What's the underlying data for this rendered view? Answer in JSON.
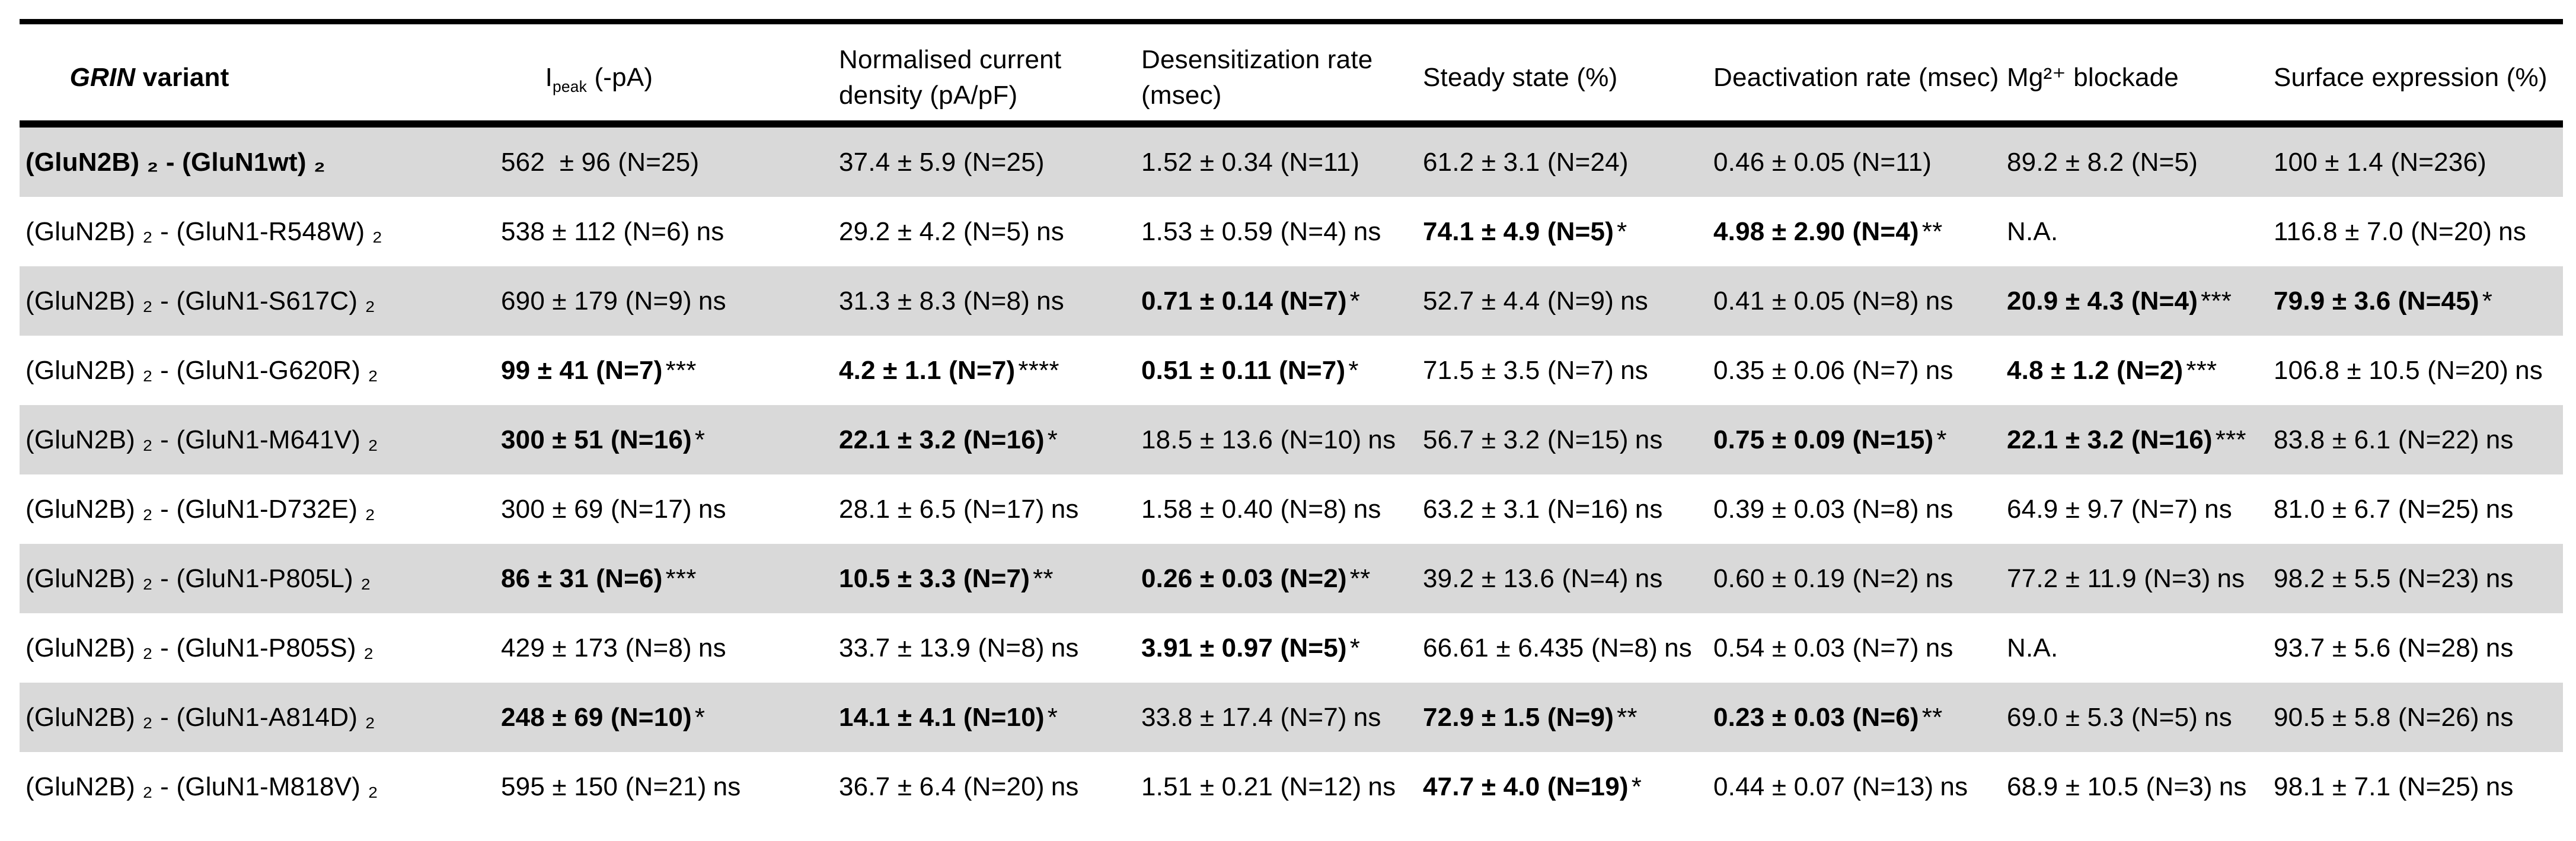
{
  "colors": {
    "background": "#ffffff",
    "shaded_row": "#d9d9d9",
    "border": "#000000",
    "text": "#000000"
  },
  "table": {
    "columns": [
      {
        "key": "variant",
        "italic": "GRIN",
        "rest": " variant"
      },
      {
        "key": "ipeak",
        "prefix": "I",
        "sub": "peak",
        "rest": " (-pA)"
      },
      {
        "key": "normalised_current_density",
        "label": "Normalised current\ndensity (pA/pF)"
      },
      {
        "key": "desensitization_rate",
        "label": "Desensitization rate\n(msec)"
      },
      {
        "key": "steady_state",
        "label": "Steady state (%)"
      },
      {
        "key": "deactivation_rate",
        "label": "Deactivation rate (msec)"
      },
      {
        "key": "mg_blockade",
        "label": "Mg²⁺ blockade"
      },
      {
        "key": "surface_expression",
        "label": "Surface expression (%)"
      }
    ],
    "rows": [
      {
        "shaded": true,
        "variant": "(GluN2B) ₂ - (GluN1wt) ₂",
        "variant_bold": true,
        "cells": [
          {
            "v": "562  ± 96 (N=25)",
            "b": false,
            "s": ""
          },
          {
            "v": "37.4 ± 5.9 (N=25)",
            "b": false,
            "s": ""
          },
          {
            "v": "1.52 ± 0.34 (N=11)",
            "b": false,
            "s": ""
          },
          {
            "v": "61.2 ± 3.1 (N=24)",
            "b": false,
            "s": ""
          },
          {
            "v": "0.46 ± 0.05 (N=11)",
            "b": false,
            "s": ""
          },
          {
            "v": "89.2 ± 8.2 (N=5)",
            "b": false,
            "s": ""
          },
          {
            "v": "100 ± 1.4 (N=236)",
            "b": false,
            "s": ""
          }
        ]
      },
      {
        "shaded": false,
        "variant": "(GluN2B) ₂ - (GluN1-R548W) ₂",
        "variant_bold": false,
        "cells": [
          {
            "v": "538 ± 112 (N=6)",
            "b": false,
            "s": "ns"
          },
          {
            "v": "29.2 ± 4.2 (N=5)",
            "b": false,
            "s": "ns"
          },
          {
            "v": "1.53 ± 0.59 (N=4)",
            "b": false,
            "s": "ns"
          },
          {
            "v": "74.1 ± 4.9 (N=5)",
            "b": true,
            "s": "*"
          },
          {
            "v": "4.98 ± 2.90 (N=4)",
            "b": true,
            "s": "**"
          },
          {
            "v": "N.A.",
            "b": false,
            "s": ""
          },
          {
            "v": "116.8 ± 7.0 (N=20)",
            "b": false,
            "s": "ns"
          }
        ]
      },
      {
        "shaded": true,
        "variant": "(GluN2B) ₂ - (GluN1-S617C) ₂",
        "variant_bold": false,
        "cells": [
          {
            "v": "690 ± 179 (N=9)",
            "b": false,
            "s": "ns"
          },
          {
            "v": "31.3 ± 8.3 (N=8)",
            "b": false,
            "s": "ns"
          },
          {
            "v": "0.71 ± 0.14 (N=7)",
            "b": true,
            "s": "*"
          },
          {
            "v": "52.7 ± 4.4 (N=9)",
            "b": false,
            "s": "ns"
          },
          {
            "v": "0.41 ± 0.05 (N=8)",
            "b": false,
            "s": "ns"
          },
          {
            "v": "20.9 ± 4.3 (N=4)",
            "b": true,
            "s": "***"
          },
          {
            "v": "79.9 ± 3.6 (N=45)",
            "b": true,
            "s": "*"
          }
        ]
      },
      {
        "shaded": false,
        "variant": "(GluN2B) ₂ - (GluN1-G620R) ₂",
        "variant_bold": false,
        "cells": [
          {
            "v": "99 ± 41 (N=7)",
            "b": true,
            "s": "***"
          },
          {
            "v": "4.2 ± 1.1 (N=7)",
            "b": true,
            "s": "****"
          },
          {
            "v": "0.51 ± 0.11 (N=7)",
            "b": true,
            "s": "*"
          },
          {
            "v": "71.5 ± 3.5 (N=7)",
            "b": false,
            "s": "ns"
          },
          {
            "v": "0.35 ± 0.06 (N=7)",
            "b": false,
            "s": "ns"
          },
          {
            "v": "4.8 ± 1.2 (N=2)",
            "b": true,
            "s": "***"
          },
          {
            "v": "106.8 ± 10.5 (N=20)",
            "b": false,
            "s": "ns"
          }
        ]
      },
      {
        "shaded": true,
        "variant": "(GluN2B) ₂ - (GluN1-M641V) ₂",
        "variant_bold": false,
        "cells": [
          {
            "v": "300 ± 51 (N=16)",
            "b": true,
            "s": "*"
          },
          {
            "v": "22.1 ± 3.2 (N=16)",
            "b": true,
            "s": "*"
          },
          {
            "v": "18.5 ± 13.6 (N=10)",
            "b": false,
            "s": "ns"
          },
          {
            "v": "56.7 ± 3.2 (N=15)",
            "b": false,
            "s": "ns"
          },
          {
            "v": "0.75 ± 0.09 (N=15)",
            "b": true,
            "s": "*"
          },
          {
            "v": "22.1 ± 3.2 (N=16)",
            "b": true,
            "s": "***"
          },
          {
            "v": "83.8 ± 6.1 (N=22)",
            "b": false,
            "s": "ns"
          }
        ]
      },
      {
        "shaded": false,
        "variant": "(GluN2B) ₂ - (GluN1-D732E) ₂",
        "variant_bold": false,
        "cells": [
          {
            "v": "300 ± 69 (N=17)",
            "b": false,
            "s": "ns"
          },
          {
            "v": "28.1 ± 6.5 (N=17)",
            "b": false,
            "s": "ns"
          },
          {
            "v": "1.58 ± 0.40 (N=8)",
            "b": false,
            "s": "ns"
          },
          {
            "v": "63.2 ± 3.1 (N=16)",
            "b": false,
            "s": "ns"
          },
          {
            "v": "0.39 ± 0.03 (N=8)",
            "b": false,
            "s": "ns"
          },
          {
            "v": "64.9 ± 9.7 (N=7)",
            "b": false,
            "s": "ns"
          },
          {
            "v": "81.0 ± 6.7 (N=25)",
            "b": false,
            "s": "ns"
          }
        ]
      },
      {
        "shaded": true,
        "variant": "(GluN2B) ₂ - (GluN1-P805L) ₂",
        "variant_bold": false,
        "cells": [
          {
            "v": "86 ± 31 (N=6)",
            "b": true,
            "s": "***"
          },
          {
            "v": "10.5 ± 3.3 (N=7)",
            "b": true,
            "s": "**"
          },
          {
            "v": "0.26 ± 0.03 (N=2)",
            "b": true,
            "s": "**"
          },
          {
            "v": "39.2 ± 13.6 (N=4)",
            "b": false,
            "s": "ns"
          },
          {
            "v": "0.60 ± 0.19 (N=2)",
            "b": false,
            "s": "ns"
          },
          {
            "v": "77.2 ± 11.9 (N=3)",
            "b": false,
            "s": "ns"
          },
          {
            "v": "98.2 ± 5.5 (N=23)",
            "b": false,
            "s": "ns"
          }
        ]
      },
      {
        "shaded": false,
        "variant": "(GluN2B) ₂ - (GluN1-P805S) ₂",
        "variant_bold": false,
        "cells": [
          {
            "v": "429 ± 173 (N=8)",
            "b": false,
            "s": "ns"
          },
          {
            "v": "33.7 ± 13.9 (N=8)",
            "b": false,
            "s": "ns"
          },
          {
            "v": "3.91 ± 0.97 (N=5)",
            "b": true,
            "s": "*"
          },
          {
            "v": "66.61 ± 6.435 (N=8)",
            "b": false,
            "s": "ns"
          },
          {
            "v": "0.54 ± 0.03 (N=7)",
            "b": false,
            "s": "ns"
          },
          {
            "v": "N.A.",
            "b": false,
            "s": ""
          },
          {
            "v": "93.7 ± 5.6 (N=28)",
            "b": false,
            "s": "ns"
          }
        ]
      },
      {
        "shaded": true,
        "variant": "(GluN2B) ₂ - (GluN1-A814D) ₂",
        "variant_bold": false,
        "cells": [
          {
            "v": "248 ± 69 (N=10)",
            "b": true,
            "s": "*"
          },
          {
            "v": "14.1 ± 4.1 (N=10)",
            "b": true,
            "s": "*"
          },
          {
            "v": "33.8 ± 17.4 (N=7)",
            "b": false,
            "s": "ns"
          },
          {
            "v": "72.9 ± 1.5 (N=9)",
            "b": true,
            "s": "**"
          },
          {
            "v": "0.23 ± 0.03 (N=6)",
            "b": true,
            "s": "**"
          },
          {
            "v": "69.0 ± 5.3 (N=5)",
            "b": false,
            "s": "ns"
          },
          {
            "v": "90.5 ± 5.8 (N=26)",
            "b": false,
            "s": "ns"
          }
        ]
      },
      {
        "shaded": false,
        "variant": "(GluN2B) ₂ - (GluN1-M818V) ₂",
        "variant_bold": false,
        "cells": [
          {
            "v": "595 ± 150 (N=21)",
            "b": false,
            "s": "ns"
          },
          {
            "v": "36.7 ± 6.4 (N=20)",
            "b": false,
            "s": "ns"
          },
          {
            "v": "1.51 ± 0.21 (N=12)",
            "b": false,
            "s": "ns"
          },
          {
            "v": "47.7 ± 4.0 (N=19)",
            "b": true,
            "s": "*"
          },
          {
            "v": "0.44 ± 0.07 (N=13)",
            "b": false,
            "s": "ns"
          },
          {
            "v": "68.9 ± 10.5 (N=3)",
            "b": false,
            "s": "ns"
          },
          {
            "v": "98.1 ± 7.1 (N=25)",
            "b": false,
            "s": "ns"
          }
        ]
      }
    ]
  }
}
